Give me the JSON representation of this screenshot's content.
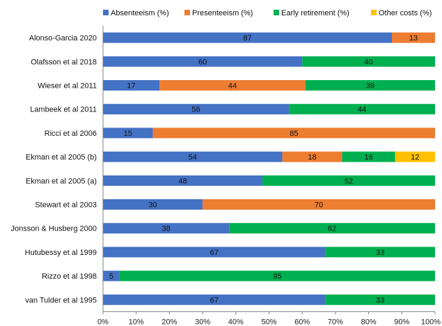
{
  "chart_data": {
    "type": "bar",
    "stacked": true,
    "orientation": "horizontal",
    "title": "",
    "xlabel": "",
    "ylabel": "",
    "xlim": [
      0,
      100
    ],
    "x_ticks": [
      "0%",
      "10%",
      "20%",
      "30%",
      "40%",
      "50%",
      "60%",
      "70%",
      "80%",
      "90%",
      "100%"
    ],
    "grid": false,
    "legend_position": "top",
    "categories": [
      "Alonso-Garcia 2020",
      "Olafsson et al 2018",
      "Wieser et al 2011",
      "Lambeek et al 2011",
      "Ricci et al 2006",
      "Ekman et al 2005 (b)",
      "Ekman et al 2005 (a)",
      "Stewart et al 2003",
      "Jonsson & Husberg 2000",
      "Hutubessy et al 1999",
      "Rizzo et al 1998",
      "van Tulder et al 1995"
    ],
    "series": [
      {
        "name": "Absenteeism (%)",
        "color": "#4472C4",
        "values": [
          87,
          60,
          17,
          56,
          15,
          54,
          48,
          30,
          38,
          67,
          5,
          67
        ]
      },
      {
        "name": "Presenteeism (%)",
        "color": "#ED7D31",
        "values": [
          13,
          0,
          44,
          0,
          85,
          18,
          0,
          70,
          0,
          0,
          0,
          0
        ]
      },
      {
        "name": "Early retirement (%)",
        "color": "#00B050",
        "values": [
          0,
          40,
          39,
          44,
          0,
          16,
          52,
          0,
          62,
          33,
          95,
          33
        ]
      },
      {
        "name": "Other costs (%)",
        "color": "#FFC000",
        "values": [
          0,
          0,
          0,
          0,
          0,
          12,
          0,
          0,
          0,
          0,
          0,
          0
        ]
      }
    ]
  }
}
